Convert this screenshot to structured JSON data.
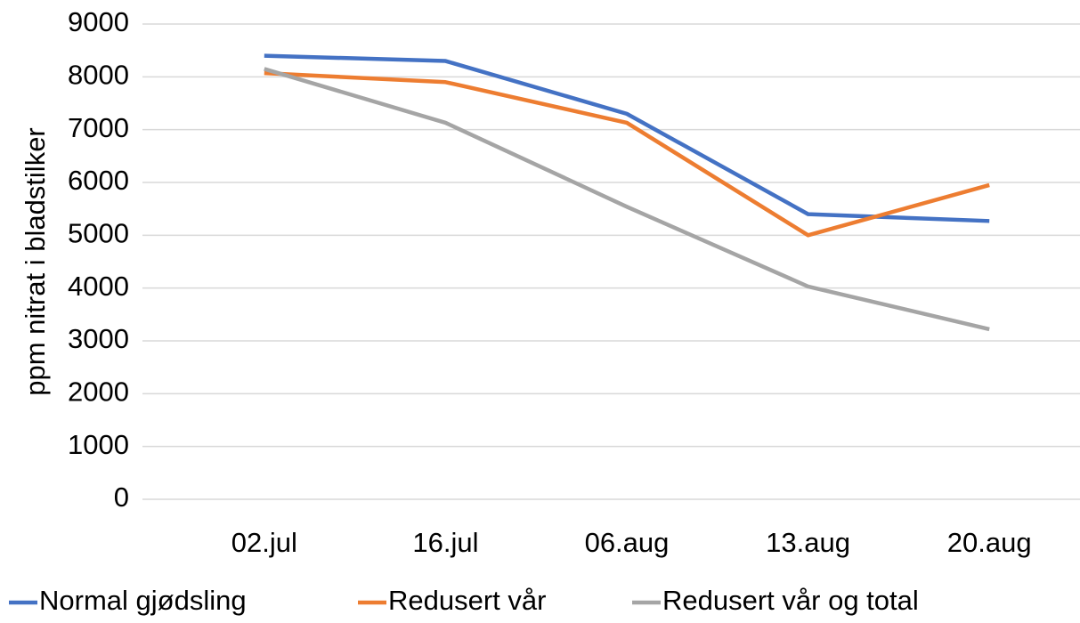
{
  "chart_data": {
    "type": "line",
    "y_label": "ppm nitrat i bladstilker",
    "categories": [
      "02.jul",
      "16.jul",
      "06.aug",
      "13.aug",
      "20.aug"
    ],
    "series": [
      {
        "name": "Normal gjødsling",
        "color": "#4472c4",
        "values": [
          8400,
          8300,
          7300,
          5400,
          5270
        ]
      },
      {
        "name": "Redusert vår",
        "color": "#ed7d31",
        "values": [
          8070,
          7900,
          7130,
          5000,
          5950
        ]
      },
      {
        "name": "Redusert vår og total",
        "color": "#a5a5a5",
        "values": [
          8150,
          7130,
          5540,
          4030,
          3220
        ]
      }
    ],
    "ylim": [
      0,
      9000
    ],
    "yticks": [
      0,
      1000,
      2000,
      3000,
      4000,
      5000,
      6000,
      7000,
      8000,
      9000
    ],
    "grid": true,
    "legend": "bottom"
  }
}
